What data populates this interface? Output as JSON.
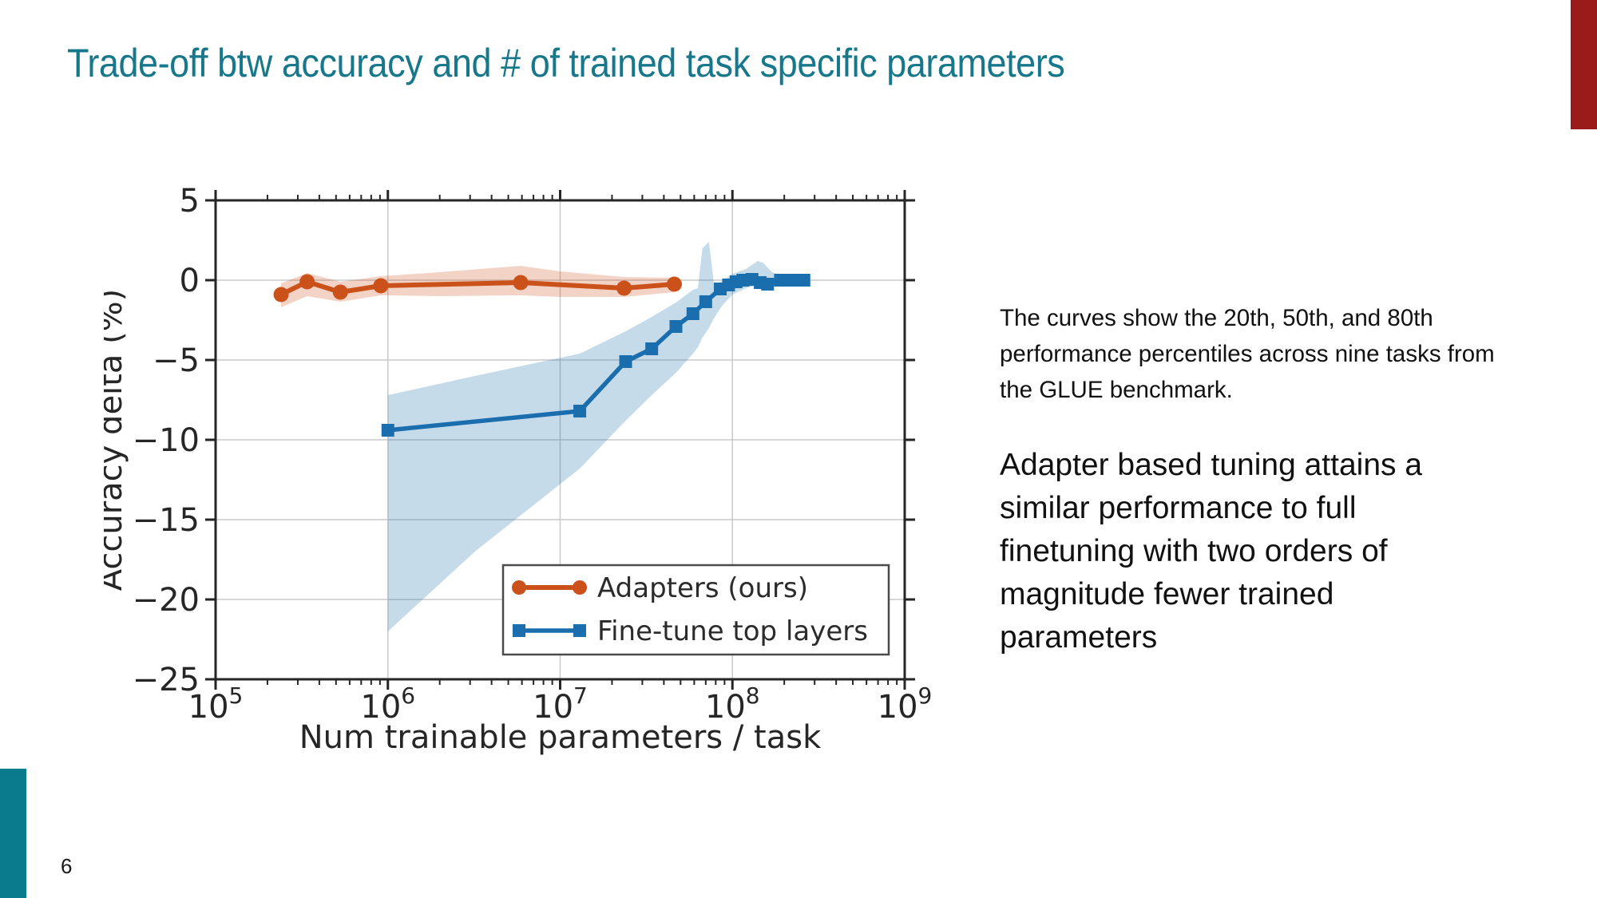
{
  "slide": {
    "title": "Trade-off btw accuracy and # of trained task specific parameters",
    "page_number": "6",
    "note_paragraph": "The curves show the 20th, 50th, and 80th performance percentiles across nine tasks from the GLUE benchmark.",
    "takeaway_paragraph": "Adapter based tuning attains a similar performance to full finetuning with two orders of magnitude fewer trained parameters",
    "accent_colors": {
      "title_teal": "#17788c",
      "footer_bar_teal": "#087c8c",
      "corner_bar_red": "#9b1b1b"
    }
  },
  "chart_data": {
    "type": "line",
    "x_scale": "log",
    "xlabel": "Num trainable parameters / task",
    "ylabel": "Accuracy delta (%)",
    "xlim_log10": [
      5,
      9
    ],
    "ylim": [
      -25,
      5
    ],
    "x_ticks_exp": [
      5,
      6,
      7,
      8,
      9
    ],
    "y_ticks": [
      5,
      0,
      -5,
      -10,
      -15,
      -20,
      -25
    ],
    "grid": true,
    "legend_position": "inside lower right",
    "style": {
      "grid_color": "#c9c9c9",
      "axis_color": "#262626",
      "band_opacity": 0.25,
      "legend_border": "#4a4a4a",
      "text_color": "#2b2b2b"
    },
    "series": [
      {
        "key": "adapters",
        "name": "Adapters (ours)",
        "color": "#cb511b",
        "marker": "circle",
        "line_width": 6,
        "points": [
          [
            240000.0,
            -0.9
          ],
          [
            340000.0,
            -0.1
          ],
          [
            530000.0,
            -0.75
          ],
          [
            910000.0,
            -0.35
          ],
          [
            5900000.0,
            -0.15
          ],
          [
            23500000.0,
            -0.5
          ],
          [
            46000000.0,
            -0.25
          ]
        ],
        "band": [
          [
            240000.0,
            -0.2,
            -1.7
          ],
          [
            340000.0,
            0.45,
            -1.0
          ],
          [
            530000.0,
            -0.1,
            -1.35
          ],
          [
            910000.0,
            0.25,
            -0.95
          ],
          [
            2000000.0,
            0.5,
            -1.0
          ],
          [
            5900000.0,
            0.9,
            -0.95
          ],
          [
            10000000.0,
            0.55,
            -1.05
          ],
          [
            23500000.0,
            0.2,
            -1.05
          ],
          [
            46000000.0,
            0.15,
            -0.75
          ]
        ]
      },
      {
        "key": "finetune",
        "name": "Fine-tune top layers",
        "color": "#1b6ead",
        "marker": "square",
        "line_width": 5.5,
        "points": [
          [
            1000000.0,
            -9.4
          ],
          [
            13000000.0,
            -8.2
          ],
          [
            24000000.0,
            -5.1
          ],
          [
            34000000.0,
            -4.3
          ],
          [
            47000000.0,
            -2.9
          ],
          [
            59000000.0,
            -2.1
          ],
          [
            70000000.0,
            -1.35
          ],
          [
            85000000.0,
            -0.55
          ],
          [
            95000000.0,
            -0.3
          ],
          [
            105000000.0,
            -0.1
          ],
          [
            115000000.0,
            0.0
          ],
          [
            130000000.0,
            0.05
          ],
          [
            145000000.0,
            -0.15
          ],
          [
            160000000.0,
            -0.25
          ],
          [
            190000000.0,
            0.0
          ],
          [
            220000000.0,
            0.0
          ],
          [
            260000000.0,
            0.0
          ]
        ],
        "band": [
          [
            1000000.0,
            -7.2,
            -22.0
          ],
          [
            3200000.0,
            -6.0,
            -17.0
          ],
          [
            13000000.0,
            -4.6,
            -11.8
          ],
          [
            24000000.0,
            -3.2,
            -8.8
          ],
          [
            34000000.0,
            -2.3,
            -7.2
          ],
          [
            47000000.0,
            -1.4,
            -5.8
          ],
          [
            59000000.0,
            -0.6,
            -4.6
          ],
          [
            63000000.0,
            -0.5,
            -4.2
          ],
          [
            67000000.0,
            2.0,
            -3.6
          ],
          [
            73000000.0,
            2.4,
            -3.0
          ],
          [
            78000000.0,
            -0.2,
            -2.4
          ],
          [
            87000000.0,
            -0.1,
            -1.6
          ],
          [
            100000000.0,
            0.4,
            -0.9
          ],
          [
            120000000.0,
            0.7,
            -0.5
          ],
          [
            140000000.0,
            1.2,
            -0.3
          ],
          [
            150000000.0,
            1.1,
            -0.25
          ],
          [
            170000000.0,
            0.5,
            -0.2
          ],
          [
            200000000.0,
            0.2,
            -0.15
          ],
          [
            260000000.0,
            0.05,
            -0.05
          ]
        ]
      }
    ]
  }
}
